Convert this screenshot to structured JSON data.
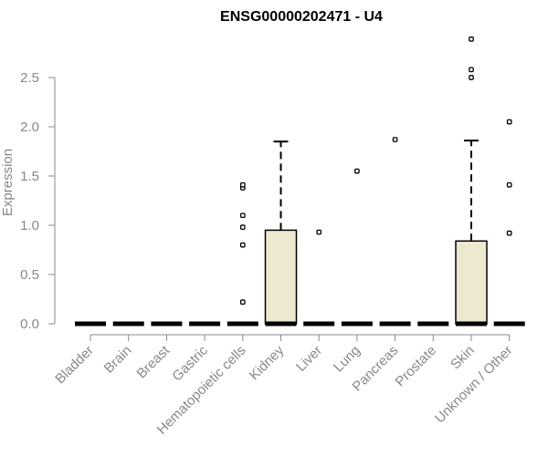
{
  "chart_data": {
    "type": "box",
    "title": "ENSG00000202471 - U4",
    "xlabel": "",
    "ylabel": "Expression",
    "ylim": [
      0,
      2.9
    ],
    "yticks": [
      "0.0",
      "0.5",
      "1.0",
      "1.5",
      "2.0",
      "2.5"
    ],
    "grid": false,
    "box_fill": "#ede8d0",
    "categories": [
      "Bladder",
      "Brain",
      "Breast",
      "Gastric",
      "Hematopoietic cells",
      "Kidney",
      "Liver",
      "Lung",
      "Pancreas",
      "Prostate",
      "Skin",
      "Unknown / Other"
    ],
    "boxes": [
      {
        "category": "Bladder",
        "q1": 0,
        "median": 0,
        "q3": 0,
        "whisker_low": 0,
        "whisker_high": 0,
        "outliers": []
      },
      {
        "category": "Brain",
        "q1": 0,
        "median": 0,
        "q3": 0,
        "whisker_low": 0,
        "whisker_high": 0,
        "outliers": []
      },
      {
        "category": "Breast",
        "q1": 0,
        "median": 0,
        "q3": 0,
        "whisker_low": 0,
        "whisker_high": 0,
        "outliers": []
      },
      {
        "category": "Gastric",
        "q1": 0,
        "median": 0,
        "q3": 0,
        "whisker_low": 0,
        "whisker_high": 0,
        "outliers": []
      },
      {
        "category": "Hematopoietic cells",
        "q1": 0,
        "median": 0,
        "q3": 0,
        "whisker_low": 0,
        "whisker_high": 0,
        "outliers": [
          0.22,
          0.8,
          0.98,
          1.1,
          1.38,
          1.41
        ]
      },
      {
        "category": "Kidney",
        "q1": 0,
        "median": 0,
        "q3": 0.95,
        "whisker_low": 0,
        "whisker_high": 1.85,
        "outliers": []
      },
      {
        "category": "Liver",
        "q1": 0,
        "median": 0,
        "q3": 0,
        "whisker_low": 0,
        "whisker_high": 0,
        "outliers": [
          0.93
        ]
      },
      {
        "category": "Lung",
        "q1": 0,
        "median": 0,
        "q3": 0,
        "whisker_low": 0,
        "whisker_high": 0,
        "outliers": [
          1.55
        ]
      },
      {
        "category": "Pancreas",
        "q1": 0,
        "median": 0,
        "q3": 0,
        "whisker_low": 0,
        "whisker_high": 0,
        "outliers": [
          1.87
        ]
      },
      {
        "category": "Prostate",
        "q1": 0,
        "median": 0,
        "q3": 0,
        "whisker_low": 0,
        "whisker_high": 0,
        "outliers": []
      },
      {
        "category": "Skin",
        "q1": 0,
        "median": 0,
        "q3": 0.84,
        "whisker_low": 0,
        "whisker_high": 1.86,
        "outliers": [
          2.5,
          2.58,
          2.89
        ]
      },
      {
        "category": "Unknown / Other",
        "q1": 0,
        "median": 0,
        "q3": 0,
        "whisker_low": 0,
        "whisker_high": 0,
        "outliers": [
          0.92,
          1.41,
          2.05
        ]
      }
    ]
  }
}
